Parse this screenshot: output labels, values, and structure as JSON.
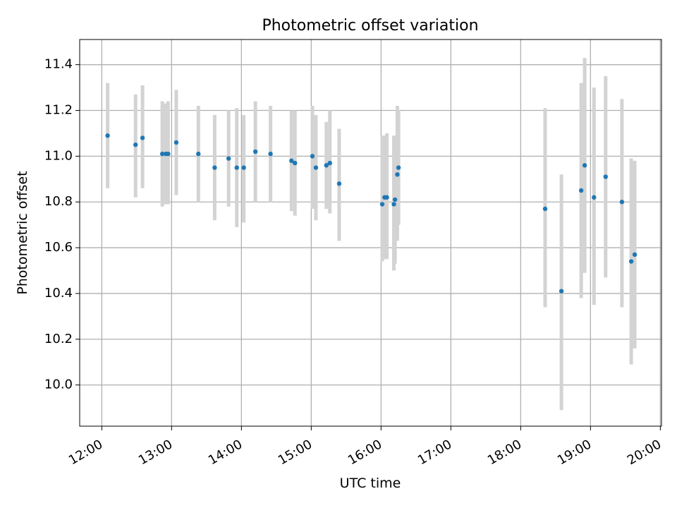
{
  "chart_data": {
    "type": "scatter",
    "title": "Photometric offset variation",
    "xlabel": "UTC time",
    "ylabel": "Photometric offset",
    "xlim": [
      "11:41",
      "20:01"
    ],
    "ylim": [
      9.82,
      11.51
    ],
    "grid": true,
    "x_ticks": [
      "12:00",
      "13:00",
      "14:00",
      "15:00",
      "16:00",
      "17:00",
      "18:00",
      "19:00",
      "20:00"
    ],
    "y_ticks": [
      "10.0",
      "10.2",
      "10.4",
      "10.6",
      "10.8",
      "11.0",
      "11.2",
      "11.4"
    ],
    "colors": {
      "point": "#1f77b4",
      "errorbar": "#d3d3d3",
      "grid": "#b0b0b0"
    },
    "points": [
      {
        "x": "12:05",
        "y": 11.09,
        "ylo": 10.86,
        "yhi": 11.32
      },
      {
        "x": "12:29",
        "y": 11.05,
        "ylo": 10.82,
        "yhi": 11.27
      },
      {
        "x": "12:35",
        "y": 11.08,
        "ylo": 10.86,
        "yhi": 11.31
      },
      {
        "x": "12:52",
        "y": 11.01,
        "ylo": 10.78,
        "yhi": 11.24
      },
      {
        "x": "12:55",
        "y": 11.01,
        "ylo": 10.79,
        "yhi": 11.23
      },
      {
        "x": "12:57",
        "y": 11.01,
        "ylo": 10.79,
        "yhi": 11.24
      },
      {
        "x": "13:04",
        "y": 11.06,
        "ylo": 10.83,
        "yhi": 11.29
      },
      {
        "x": "13:23",
        "y": 11.01,
        "ylo": 10.8,
        "yhi": 11.22
      },
      {
        "x": "13:37",
        "y": 10.95,
        "ylo": 10.72,
        "yhi": 11.18
      },
      {
        "x": "13:49",
        "y": 10.99,
        "ylo": 10.78,
        "yhi": 11.2
      },
      {
        "x": "13:56",
        "y": 10.95,
        "ylo": 10.69,
        "yhi": 11.21
      },
      {
        "x": "14:02",
        "y": 10.95,
        "ylo": 10.71,
        "yhi": 11.18
      },
      {
        "x": "14:12",
        "y": 11.02,
        "ylo": 10.8,
        "yhi": 11.24
      },
      {
        "x": "14:25",
        "y": 11.01,
        "ylo": 10.8,
        "yhi": 11.22
      },
      {
        "x": "14:43",
        "y": 10.98,
        "ylo": 10.76,
        "yhi": 11.2
      },
      {
        "x": "14:46",
        "y": 10.97,
        "ylo": 10.74,
        "yhi": 11.2
      },
      {
        "x": "15:01",
        "y": 11.0,
        "ylo": 10.77,
        "yhi": 11.22
      },
      {
        "x": "15:04",
        "y": 10.95,
        "ylo": 10.72,
        "yhi": 11.18
      },
      {
        "x": "15:13",
        "y": 10.96,
        "ylo": 10.77,
        "yhi": 11.15
      },
      {
        "x": "15:16",
        "y": 10.97,
        "ylo": 10.75,
        "yhi": 11.2
      },
      {
        "x": "15:24",
        "y": 10.88,
        "ylo": 10.63,
        "yhi": 11.12
      },
      {
        "x": "16:01",
        "y": 10.79,
        "ylo": 10.54,
        "yhi": 11.09
      },
      {
        "x": "16:03",
        "y": 10.82,
        "ylo": 10.55,
        "yhi": 11.09
      },
      {
        "x": "16:05",
        "y": 10.82,
        "ylo": 10.55,
        "yhi": 11.1
      },
      {
        "x": "16:11",
        "y": 10.79,
        "ylo": 10.5,
        "yhi": 11.09
      },
      {
        "x": "16:12",
        "y": 10.81,
        "ylo": 10.53,
        "yhi": 11.09
      },
      {
        "x": "16:14",
        "y": 10.92,
        "ylo": 10.63,
        "yhi": 11.22
      },
      {
        "x": "16:15",
        "y": 10.95,
        "ylo": 10.7,
        "yhi": 11.2
      },
      {
        "x": "18:21",
        "y": 10.77,
        "ylo": 10.34,
        "yhi": 11.21
      },
      {
        "x": "18:35",
        "y": 10.41,
        "ylo": 9.89,
        "yhi": 10.92
      },
      {
        "x": "18:52",
        "y": 10.85,
        "ylo": 10.38,
        "yhi": 11.32
      },
      {
        "x": "18:55",
        "y": 10.96,
        "ylo": 10.49,
        "yhi": 11.43
      },
      {
        "x": "19:03",
        "y": 10.82,
        "ylo": 10.35,
        "yhi": 11.3
      },
      {
        "x": "19:13",
        "y": 10.91,
        "ylo": 10.47,
        "yhi": 11.35
      },
      {
        "x": "19:27",
        "y": 10.8,
        "ylo": 10.34,
        "yhi": 11.25
      },
      {
        "x": "19:35",
        "y": 10.54,
        "ylo": 10.09,
        "yhi": 10.99
      },
      {
        "x": "19:38",
        "y": 10.57,
        "ylo": 10.16,
        "yhi": 10.98
      }
    ]
  }
}
